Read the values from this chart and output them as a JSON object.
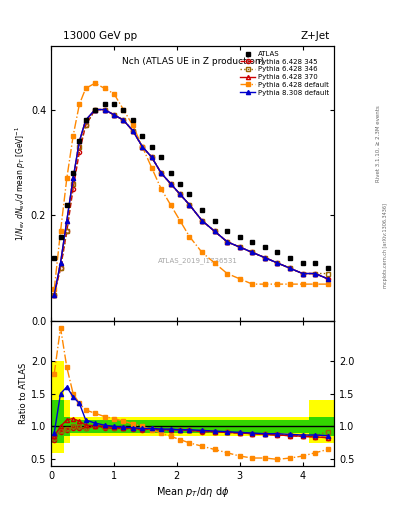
{
  "title_left": "13000 GeV pp",
  "title_right": "Z+Jet",
  "plot_title": "Nch (ATLAS UE in Z production)",
  "watermark": "ATLAS_2019_I1736531",
  "rivet_text": "Rivet 3.1.10, ≥ 2.3M events",
  "mcplots_text": "mcplots.cern.ch [arXiv:1306.3436]",
  "atlas_x": [
    0.05,
    0.15,
    0.25,
    0.35,
    0.45,
    0.55,
    0.7,
    0.85,
    1.0,
    1.15,
    1.3,
    1.45,
    1.6,
    1.75,
    1.9,
    2.05,
    2.2,
    2.4,
    2.6,
    2.8,
    3.0,
    3.2,
    3.4,
    3.6,
    3.8,
    4.0,
    4.2,
    4.4
  ],
  "atlas_y": [
    0.12,
    0.16,
    0.22,
    0.28,
    0.34,
    0.38,
    0.4,
    0.41,
    0.41,
    0.4,
    0.38,
    0.35,
    0.33,
    0.31,
    0.28,
    0.26,
    0.24,
    0.21,
    0.19,
    0.17,
    0.16,
    0.15,
    0.14,
    0.13,
    0.12,
    0.11,
    0.11,
    0.1
  ],
  "p6_345_x": [
    0.05,
    0.15,
    0.25,
    0.35,
    0.45,
    0.55,
    0.7,
    0.85,
    1.0,
    1.15,
    1.3,
    1.45,
    1.6,
    1.75,
    1.9,
    2.05,
    2.2,
    2.4,
    2.6,
    2.8,
    3.0,
    3.2,
    3.4,
    3.6,
    3.8,
    4.0,
    4.2,
    4.4
  ],
  "p6_345_y": [
    0.05,
    0.1,
    0.17,
    0.25,
    0.32,
    0.37,
    0.4,
    0.4,
    0.39,
    0.38,
    0.36,
    0.33,
    0.31,
    0.28,
    0.26,
    0.24,
    0.22,
    0.19,
    0.17,
    0.15,
    0.14,
    0.13,
    0.12,
    0.11,
    0.1,
    0.09,
    0.09,
    0.08
  ],
  "p6_346_x": [
    0.05,
    0.15,
    0.25,
    0.35,
    0.45,
    0.55,
    0.7,
    0.85,
    1.0,
    1.15,
    1.3,
    1.45,
    1.6,
    1.75,
    1.9,
    2.05,
    2.2,
    2.4,
    2.6,
    2.8,
    3.0,
    3.2,
    3.4,
    3.6,
    3.8,
    4.0,
    4.2,
    4.4
  ],
  "p6_346_y": [
    0.05,
    0.1,
    0.17,
    0.26,
    0.33,
    0.37,
    0.4,
    0.4,
    0.39,
    0.38,
    0.36,
    0.33,
    0.31,
    0.28,
    0.26,
    0.24,
    0.22,
    0.19,
    0.17,
    0.15,
    0.14,
    0.13,
    0.12,
    0.11,
    0.1,
    0.09,
    0.09,
    0.09
  ],
  "p6_370_x": [
    0.05,
    0.15,
    0.25,
    0.35,
    0.45,
    0.55,
    0.7,
    0.85,
    1.0,
    1.15,
    1.3,
    1.45,
    1.6,
    1.75,
    1.9,
    2.05,
    2.2,
    2.4,
    2.6,
    2.8,
    3.0,
    3.2,
    3.4,
    3.6,
    3.8,
    4.0,
    4.2,
    4.4
  ],
  "p6_370_y": [
    0.05,
    0.11,
    0.19,
    0.27,
    0.34,
    0.38,
    0.4,
    0.4,
    0.39,
    0.38,
    0.36,
    0.33,
    0.31,
    0.28,
    0.26,
    0.24,
    0.22,
    0.19,
    0.17,
    0.15,
    0.14,
    0.13,
    0.12,
    0.11,
    0.1,
    0.09,
    0.09,
    0.08
  ],
  "p6_def_x": [
    0.05,
    0.15,
    0.25,
    0.35,
    0.45,
    0.55,
    0.7,
    0.85,
    1.0,
    1.15,
    1.3,
    1.45,
    1.6,
    1.75,
    1.9,
    2.05,
    2.2,
    2.4,
    2.6,
    2.8,
    3.0,
    3.2,
    3.4,
    3.6,
    3.8,
    4.0,
    4.2,
    4.4
  ],
  "p6_def_y": [
    0.06,
    0.17,
    0.27,
    0.35,
    0.41,
    0.44,
    0.45,
    0.44,
    0.43,
    0.4,
    0.37,
    0.33,
    0.29,
    0.25,
    0.22,
    0.19,
    0.16,
    0.13,
    0.11,
    0.09,
    0.08,
    0.07,
    0.07,
    0.07,
    0.07,
    0.07,
    0.07,
    0.07
  ],
  "p8_def_x": [
    0.05,
    0.15,
    0.25,
    0.35,
    0.45,
    0.55,
    0.7,
    0.85,
    1.0,
    1.15,
    1.3,
    1.45,
    1.6,
    1.75,
    1.9,
    2.05,
    2.2,
    2.4,
    2.6,
    2.8,
    3.0,
    3.2,
    3.4,
    3.6,
    3.8,
    4.0,
    4.2,
    4.4
  ],
  "p8_def_y": [
    0.05,
    0.11,
    0.19,
    0.27,
    0.34,
    0.38,
    0.4,
    0.4,
    0.39,
    0.38,
    0.36,
    0.33,
    0.31,
    0.28,
    0.26,
    0.24,
    0.22,
    0.19,
    0.17,
    0.15,
    0.14,
    0.13,
    0.12,
    0.11,
    0.1,
    0.09,
    0.09,
    0.08
  ],
  "ratio_345_y": [
    0.8,
    0.92,
    0.95,
    0.98,
    0.97,
    0.97,
    1.0,
    0.98,
    0.97,
    0.97,
    0.96,
    0.95,
    0.96,
    0.94,
    0.95,
    0.95,
    0.94,
    0.92,
    0.92,
    0.91,
    0.9,
    0.89,
    0.88,
    0.87,
    0.86,
    0.85,
    0.84,
    0.83
  ],
  "ratio_346_y": [
    0.83,
    0.93,
    0.96,
    1.0,
    1.0,
    0.98,
    1.0,
    0.99,
    0.98,
    0.98,
    0.97,
    0.96,
    0.96,
    0.95,
    0.95,
    0.95,
    0.94,
    0.93,
    0.92,
    0.91,
    0.9,
    0.89,
    0.89,
    0.88,
    0.87,
    0.86,
    0.86,
    0.92
  ],
  "ratio_370_y": [
    0.85,
    1.0,
    1.1,
    1.12,
    1.08,
    1.02,
    1.01,
    1.0,
    0.99,
    0.98,
    0.97,
    0.96,
    0.96,
    0.95,
    0.95,
    0.95,
    0.94,
    0.93,
    0.92,
    0.91,
    0.9,
    0.89,
    0.88,
    0.87,
    0.86,
    0.85,
    0.84,
    0.83
  ],
  "ratio_def_y": [
    1.8,
    2.5,
    1.9,
    1.5,
    1.35,
    1.25,
    1.2,
    1.15,
    1.12,
    1.08,
    1.04,
    1.0,
    0.95,
    0.9,
    0.85,
    0.8,
    0.75,
    0.7,
    0.65,
    0.6,
    0.55,
    0.52,
    0.52,
    0.5,
    0.52,
    0.55,
    0.6,
    0.65
  ],
  "ratio_p8_y": [
    0.9,
    1.5,
    1.6,
    1.45,
    1.35,
    1.1,
    1.05,
    1.02,
    1.0,
    0.99,
    0.98,
    0.97,
    0.97,
    0.96,
    0.96,
    0.95,
    0.95,
    0.94,
    0.93,
    0.92,
    0.91,
    0.9,
    0.89,
    0.89,
    0.88,
    0.87,
    0.87,
    0.86
  ],
  "band_yellow_lo": [
    0.6,
    0.6,
    0.75,
    0.85,
    0.85,
    0.85,
    0.85,
    0.85,
    0.85,
    0.85,
    0.85,
    0.85,
    0.85,
    0.85,
    0.85,
    0.85,
    0.85,
    0.85,
    0.85,
    0.85,
    0.85,
    0.85,
    0.85,
    0.85,
    0.85,
    0.85,
    0.75,
    0.75
  ],
  "band_yellow_hi": [
    2.0,
    2.0,
    1.4,
    1.15,
    1.15,
    1.15,
    1.15,
    1.15,
    1.15,
    1.15,
    1.15,
    1.15,
    1.15,
    1.15,
    1.15,
    1.15,
    1.15,
    1.15,
    1.15,
    1.15,
    1.15,
    1.15,
    1.15,
    1.15,
    1.15,
    1.15,
    1.4,
    1.4
  ],
  "band_green_lo": [
    0.75,
    0.75,
    0.85,
    0.9,
    0.9,
    0.9,
    0.9,
    0.9,
    0.9,
    0.9,
    0.9,
    0.9,
    0.9,
    0.9,
    0.9,
    0.9,
    0.9,
    0.9,
    0.9,
    0.9,
    0.9,
    0.9,
    0.9,
    0.9,
    0.9,
    0.9,
    0.85,
    0.85
  ],
  "band_green_hi": [
    1.4,
    1.4,
    1.15,
    1.1,
    1.1,
    1.1,
    1.1,
    1.1,
    1.1,
    1.1,
    1.1,
    1.1,
    1.1,
    1.1,
    1.1,
    1.1,
    1.1,
    1.1,
    1.1,
    1.1,
    1.1,
    1.1,
    1.1,
    1.1,
    1.1,
    1.1,
    1.15,
    1.15
  ],
  "color_p6_345": "#cc0000",
  "color_p6_346": "#996600",
  "color_p6_370": "#cc0000",
  "color_p6_def": "#ff8800",
  "color_p8_def": "#0000cc",
  "color_atlas": "#000000",
  "color_yellow": "#ffff00",
  "color_green": "#00cc00",
  "ylim_main": [
    0.0,
    0.52
  ],
  "ylim_ratio": [
    0.4,
    2.6
  ],
  "xlim": [
    0.0,
    4.5
  ],
  "yticks_main": [
    0.0,
    0.2,
    0.4
  ],
  "yticks_ratio": [
    0.5,
    1.0,
    1.5,
    2.0
  ],
  "xticks": [
    0,
    1,
    2,
    3,
    4
  ]
}
